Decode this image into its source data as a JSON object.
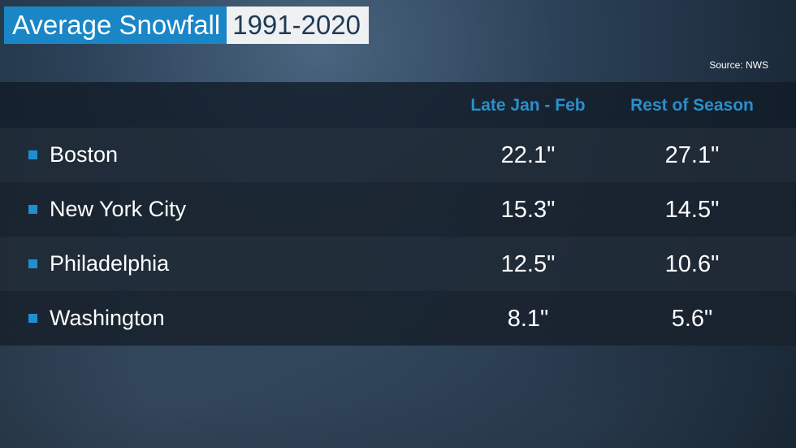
{
  "title": "Average Snowfall",
  "period": "1991-2020",
  "source": "Source: NWS",
  "colors": {
    "accent": "#1a86c6",
    "header_text": "#2b8fcb"
  },
  "chart_data": {
    "type": "table",
    "columns": [
      "Late Jan - Feb",
      "Rest of Season"
    ],
    "rows": [
      {
        "city": "Boston",
        "values": [
          "22.1\"",
          "27.1\""
        ]
      },
      {
        "city": "New York City",
        "values": [
          "15.3\"",
          "14.5\""
        ]
      },
      {
        "city": "Philadelphia",
        "values": [
          "12.5\"",
          "10.6\""
        ]
      },
      {
        "city": "Washington",
        "values": [
          "8.1\"",
          "5.6\""
        ]
      }
    ]
  }
}
